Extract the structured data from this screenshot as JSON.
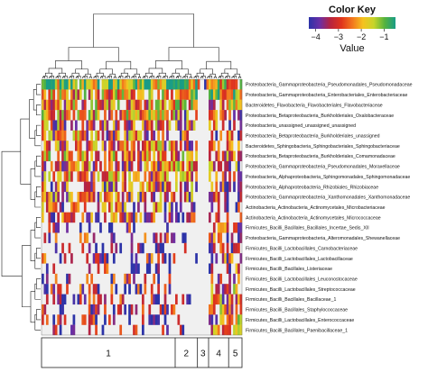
{
  "chart_data": {
    "type": "heatmap",
    "title": "",
    "color_key": {
      "title": "Color Key",
      "xlabel": "Value",
      "ticks": [
        -4,
        -3,
        -2,
        -1
      ],
      "range": [
        -4.3,
        -0.5
      ],
      "colors": [
        "#2c33a8",
        "#6a2fa6",
        "#b8233e",
        "#e0341c",
        "#f2761e",
        "#f5c21f",
        "#c7d52a",
        "#55b33e",
        "#189c86"
      ],
      "missing_color": "#f0f0f0"
    },
    "row_labels": [
      "Proteobacteria_Gammaproteobacteria_Pseudomonadales_Pseudomonadaceae",
      "Proteobacteria_Gammaproteobacteria_Enterobacteriales_Enterobacteriaceae",
      "Bacteroidetes_Flavobacteria_Flavobacteriales_Flavobacteriaceae",
      "Proteobacteria_Betaproteobacteria_Burkholderiales_Oxalobacteraceae",
      "Proteobacteria_unassigned_unassigned_unassigned",
      "Proteobacteria_Betaproteobacteria_Burkholderiales_unassigned",
      "Bacteroidetes_Sphingobacteria_Sphingobacteriales_Sphingobacteriaceae",
      "Proteobacteria_Betaproteobacteria_Burkholderiales_Comamonadaceae",
      "Proteobacteria_Gammaproteobacteria_Pseudomonadales_Moraxellaceae",
      "Proteobacteria_Alphaproteobacteria_Sphingomonadales_Sphingomonadaceae",
      "Proteobacteria_Alphaproteobacteria_Rhizobiales_Rhizobiaceae",
      "Proteobacteria_Gammaproteobacteria_Xanthomonadales_Xanthomonadaceae",
      "Actinobacteria_Actinobacteria_Actinomycetales_Microbacteriaceae",
      "Actinobacteria_Actinobacteria_Actinomycetales_Micrococcaceae",
      "Firmicutes_Bacilli_Bacillales_Bacillales_Incertae_Sedis_XII",
      "Proteobacteria_Gammaproteobacteria_Alteromonadales_Shewanellaceae",
      "Firmicutes_Bacilli_Lactobacillales_Carnobacteriaceae",
      "Firmicutes_Bacilli_Lactobacillales_Lactobacillaceae",
      "Firmicutes_Bacilli_Bacillales_Listeriaceae",
      "Firmicutes_Bacilli_Lactobacillales_Leuconostocaceae",
      "Firmicutes_Bacilli_Lactobacillales_Streptococcaceae",
      "Firmicutes_Bacilli_Bacillales_Bacillaceae_1",
      "Firmicutes_Bacilli_Bacillales_Staphylococcaceae",
      "Firmicutes_Bacilli_Lactobacillales_Enterococcaceae",
      "Firmicutes_Bacilli_Bacillales_Paenibacillaceae_1"
    ],
    "clusters": [
      {
        "label": "1",
        "n_samples": 60
      },
      {
        "label": "2",
        "n_samples": 10
      },
      {
        "label": "3",
        "n_samples": 5
      },
      {
        "label": "4",
        "n_samples": 9
      },
      {
        "label": "5",
        "n_samples": 6
      }
    ],
    "row_profiles": [
      [
        0.88,
        0.78,
        0.3,
        0.7,
        0.75
      ],
      [
        0.55,
        0.8,
        0.2,
        0.7,
        0.75
      ],
      [
        0.55,
        0.65,
        0.0,
        0.45,
        0.6
      ],
      [
        0.55,
        0.4,
        0.0,
        0.4,
        0.35
      ],
      [
        0.45,
        0.4,
        0.0,
        0.4,
        0.4
      ],
      [
        0.45,
        0.4,
        0.0,
        0.35,
        0.35
      ],
      [
        0.5,
        0.45,
        0.0,
        0.4,
        0.4
      ],
      [
        0.55,
        0.55,
        0.0,
        0.45,
        0.45
      ],
      [
        0.45,
        0.6,
        0.0,
        0.45,
        0.4
      ],
      [
        0.5,
        0.5,
        0.0,
        0.35,
        0.4
      ],
      [
        0.4,
        0.45,
        0.0,
        0.35,
        0.35
      ],
      [
        0.45,
        0.45,
        0.0,
        0.4,
        0.4
      ],
      [
        0.4,
        0.4,
        0.0,
        0.35,
        0.35
      ],
      [
        0.35,
        0.35,
        0.0,
        0.3,
        0.35
      ],
      [
        0.15,
        0.05,
        0.0,
        0.4,
        0.3
      ],
      [
        0.25,
        0.15,
        0.0,
        0.35,
        0.4
      ],
      [
        0.2,
        0.05,
        0.0,
        0.4,
        0.35
      ],
      [
        0.25,
        0.05,
        0.0,
        0.35,
        0.35
      ],
      [
        0.2,
        0.05,
        0.0,
        0.35,
        0.35
      ],
      [
        0.2,
        0.05,
        0.0,
        0.4,
        0.4
      ],
      [
        0.25,
        0.1,
        0.0,
        0.5,
        0.55
      ],
      [
        0.2,
        0.1,
        0.0,
        0.45,
        0.6
      ],
      [
        0.2,
        0.05,
        0.0,
        0.5,
        0.6
      ],
      [
        0.2,
        0.05,
        0.0,
        0.45,
        0.55
      ],
      [
        0.15,
        0.05,
        0.0,
        0.45,
        0.55
      ]
    ],
    "legend": "top-right",
    "grid": false
  }
}
